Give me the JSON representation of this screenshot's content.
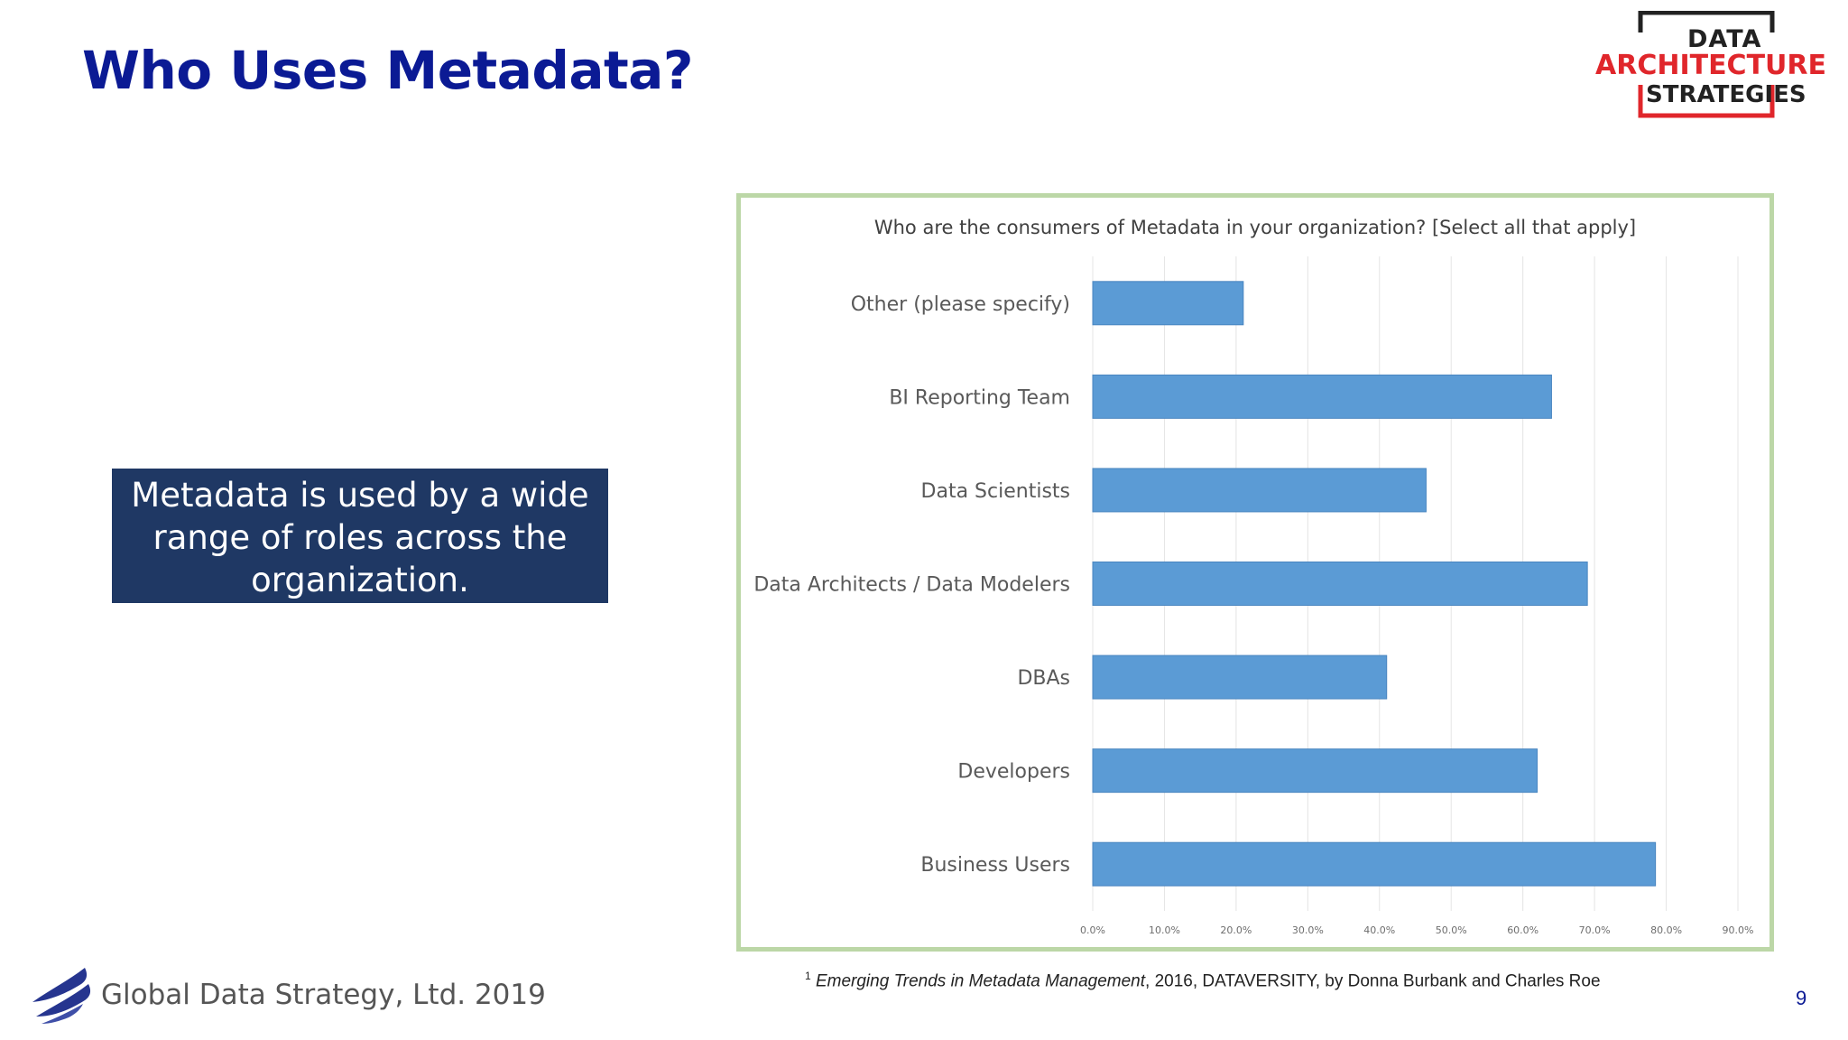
{
  "slide": {
    "title": "Who Uses Metadata?",
    "callout": "Metadata is used by a wide range of roles across the organization.",
    "footer_company": "Global Data Strategy, Ltd. 2019",
    "page_number": "9",
    "footnote": {
      "marker": "1",
      "source_title": "Emerging Trends in Metadata Management",
      "rest": ", 2016, DATAVERSITY, by Donna Burbank and Charles Roe"
    }
  },
  "logo": {
    "line1": "DATA",
    "line2": "ARCHITECTURE",
    "line3": "STRATEGIES",
    "accent_color": "#e0262b"
  },
  "colors": {
    "title": "#0b1a94",
    "callout_bg": "#1f3864",
    "bar": "#5b9bd5",
    "frame_border": "#bcd7a7"
  },
  "chart_data": {
    "type": "bar",
    "orientation": "horizontal",
    "title": "Who are the consumers of Metadata in your organization? [Select all that apply]",
    "categories": [
      "Other (please specify)",
      "BI Reporting Team",
      "Data Scientists",
      "Data Architects / Data Modelers",
      "DBAs",
      "Developers",
      "Business Users"
    ],
    "values": [
      21,
      64,
      46.5,
      69,
      41,
      62,
      78.5
    ],
    "xlim": [
      0,
      90
    ],
    "ticks": [
      "0.0%",
      "10.0%",
      "20.0%",
      "30.0%",
      "40.0%",
      "50.0%",
      "60.0%",
      "70.0%",
      "80.0%",
      "90.0%"
    ],
    "grid": true,
    "legend": false,
    "unit": "%"
  }
}
